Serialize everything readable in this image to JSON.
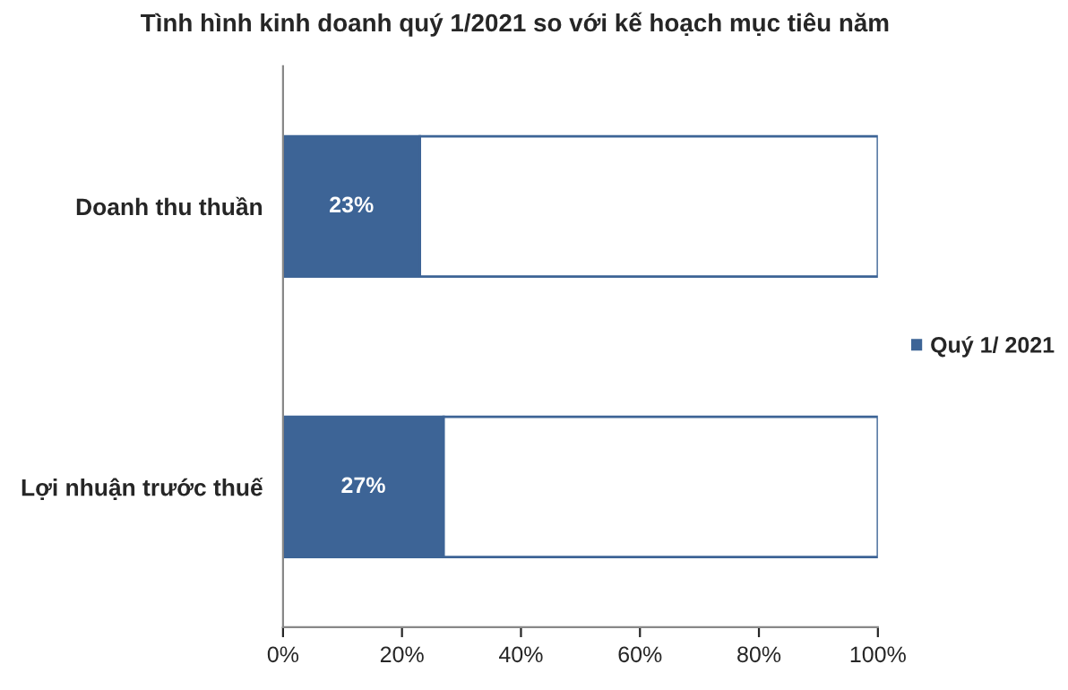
{
  "chart_data": {
    "type": "bar",
    "orientation": "horizontal",
    "stacked": true,
    "title": "Tình hình kinh doanh quý 1/2021 so với kế hoạch mục tiêu năm",
    "categories": [
      "Doanh thu thuần",
      "Lợi nhuận trước thuế"
    ],
    "series": [
      {
        "name": "Quý 1/ 2021",
        "color": "#3d6496",
        "values": [
          23,
          27
        ],
        "value_labels": [
          "23%",
          "27%"
        ]
      },
      {
        "color": "#ffffff",
        "values": [
          77,
          73
        ]
      }
    ],
    "xlim": [
      0,
      100
    ],
    "xticks": [
      {
        "value": 0,
        "label": "0%"
      },
      {
        "value": 20,
        "label": "20%"
      },
      {
        "value": 40,
        "label": "40%"
      },
      {
        "value": 60,
        "label": "60%"
      },
      {
        "value": 80,
        "label": "80%"
      },
      {
        "value": 100,
        "label": "100%"
      }
    ],
    "grid": false,
    "legend": "right"
  }
}
